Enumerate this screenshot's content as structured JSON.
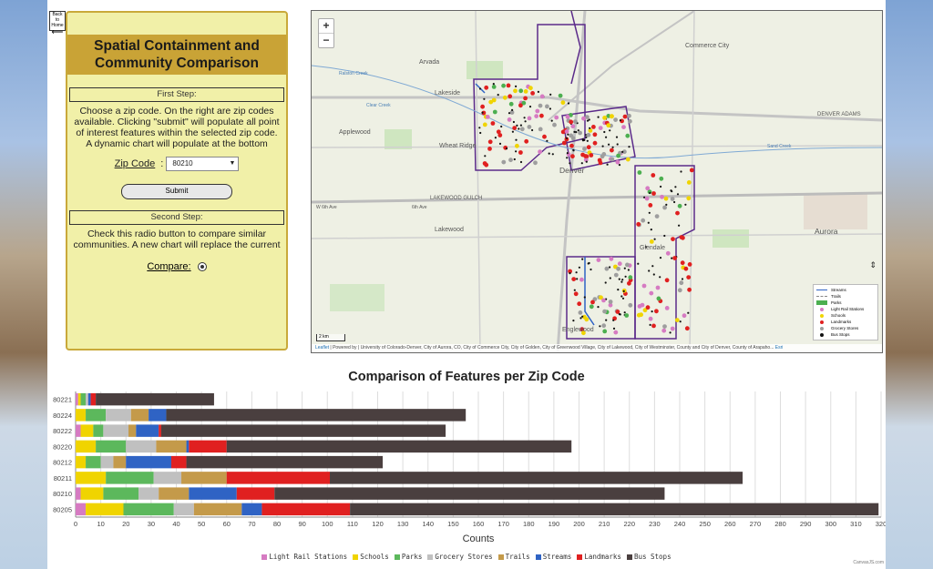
{
  "back_button": {
    "label": "Back to Home"
  },
  "panel": {
    "title": "Spatial Containment and Community Comparison",
    "step1_header": "First Step:",
    "step1_text": "Choose a zip code. On the right are zip codes available. Clicking \"submit\" will populate all point of interest features within the selected zip code. A dynamic chart will populate at the bottom",
    "zip_label": "Zip Code",
    "zip_selected": "80210",
    "submit_label": "Submit",
    "step2_header": "Second Step:",
    "step2_text": "Check this radio button to compare similar communities. A new chart will replace the current",
    "compare_label": "Compare:"
  },
  "map": {
    "zoom_in": "+",
    "zoom_out": "−",
    "place_labels": [
      "Arvada",
      "Lakeside",
      "Wheat Ridge",
      "Applewood",
      "Denver",
      "Commerce City",
      "Lakewood",
      "Glendale",
      "Aurora",
      "Englewood",
      "DENVER ADAMS",
      "LAKEWOOD GULCH",
      "W 6th Ave",
      "6th Ave",
      "Sand Creek",
      "Clear Creek",
      "Ralston Creek"
    ],
    "scale_text": "2 km",
    "attribution_link1": "Leaflet",
    "attribution_link2": "Esri",
    "attribution_text": "| Powered by  | University of Colorado-Denver, City of Aurora, CO, City of Commerce City, City of Golden, City of Greenwood Village, City of Lakewood, City of Westminster, County and City of Denver, County of Arapaho...",
    "legend": [
      {
        "label": "Streams",
        "color": "#2f63c4",
        "kind": "line"
      },
      {
        "label": "Trails",
        "color": "#888888",
        "kind": "dash"
      },
      {
        "label": "Parks",
        "color": "#4caf50",
        "kind": "box"
      },
      {
        "label": "Light Rail Stations",
        "color": "#d67bc2",
        "kind": "dot"
      },
      {
        "label": "Schools",
        "color": "#f0d400",
        "kind": "dot"
      },
      {
        "label": "Landmarks",
        "color": "#e02020",
        "kind": "dot"
      },
      {
        "label": "Grocery Stores",
        "color": "#9e9e9e",
        "kind": "dot"
      },
      {
        "label": "Bus Stops",
        "color": "#111111",
        "kind": "dot"
      }
    ]
  },
  "chart_data": {
    "type": "bar",
    "orientation": "horizontal",
    "stacked": true,
    "title": "Comparison of Features per Zip Code",
    "xlabel": "Counts",
    "ylabel": "",
    "xlim": [
      0,
      320
    ],
    "xticks": [
      0,
      10,
      20,
      30,
      40,
      50,
      60,
      70,
      80,
      90,
      100,
      110,
      120,
      130,
      140,
      150,
      160,
      170,
      180,
      190,
      200,
      210,
      220,
      230,
      240,
      250,
      260,
      270,
      280,
      290,
      300,
      310,
      320
    ],
    "categories": [
      "80221",
      "80224",
      "80222",
      "80220",
      "80212",
      "80211",
      "80210",
      "80205"
    ],
    "legend_position": "bottom",
    "series": [
      {
        "name": "Light Rail Stations",
        "color": "#d67bc2",
        "values": [
          1,
          0,
          2,
          0,
          0,
          0,
          2,
          4
        ]
      },
      {
        "name": "Schools",
        "color": "#f0d400",
        "values": [
          1,
          4,
          5,
          8,
          4,
          12,
          9,
          15
        ]
      },
      {
        "name": "Parks",
        "color": "#5cb85c",
        "values": [
          2,
          8,
          4,
          12,
          6,
          19,
          14,
          20
        ]
      },
      {
        "name": "Grocery Stores",
        "color": "#c0c0c0",
        "values": [
          1,
          10,
          10,
          12,
          5,
          11,
          8,
          8
        ]
      },
      {
        "name": "Trails",
        "color": "#c49a4a",
        "values": [
          0,
          7,
          3,
          12,
          5,
          18,
          12,
          19
        ]
      },
      {
        "name": "Streams",
        "color": "#2f63c4",
        "values": [
          1,
          7,
          9,
          1,
          18,
          0,
          19,
          8
        ]
      },
      {
        "name": "Landmarks",
        "color": "#e02020",
        "values": [
          2,
          0,
          1,
          15,
          6,
          41,
          15,
          35
        ]
      },
      {
        "name": "Bus Stops",
        "color": "#4a3f3f",
        "values": [
          47,
          119,
          113,
          137,
          78,
          164,
          155,
          210
        ]
      }
    ]
  },
  "credit": "CanvasJS.com"
}
